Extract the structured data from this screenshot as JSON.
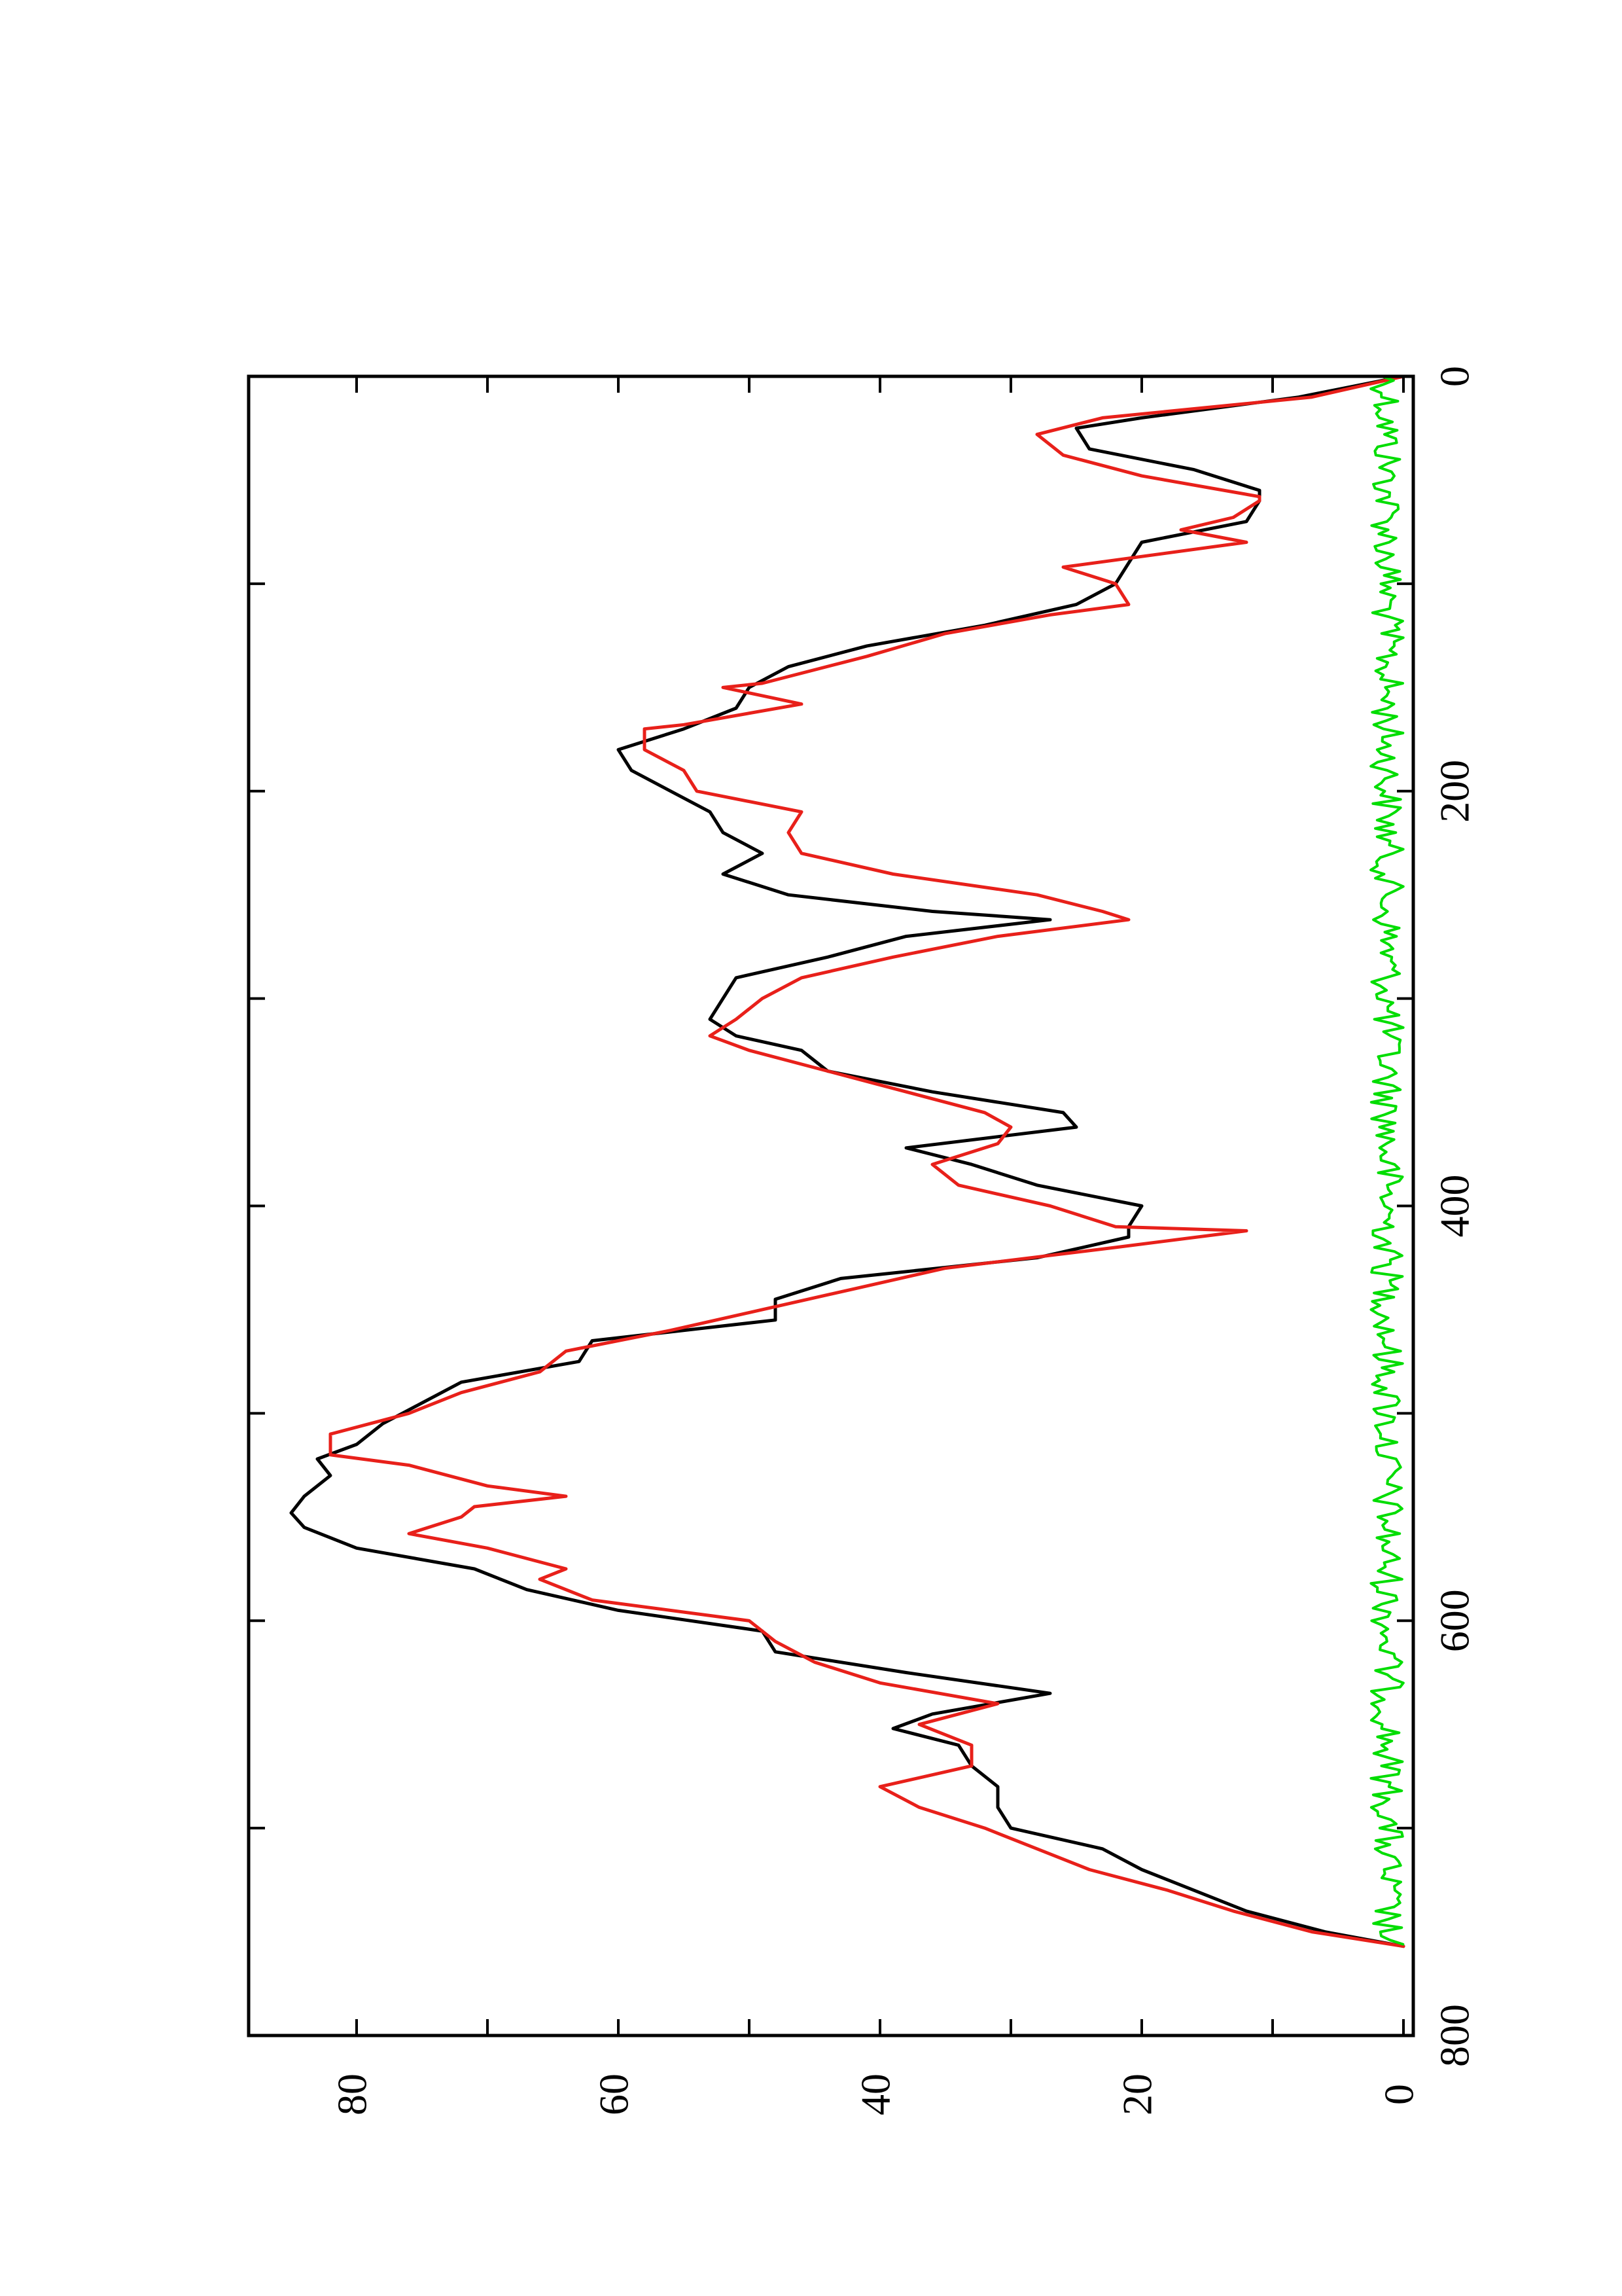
{
  "colors": {
    "background": "#ffffff",
    "axis": "#000000",
    "series": [
      "#000000",
      "#e8201a",
      "#00dd00"
    ]
  },
  "chart_data": {
    "type": "line",
    "orientation": "rotated-90-ccw",
    "title": "",
    "xlabel": "",
    "ylabel": "",
    "xlim": [
      0,
      800
    ],
    "ylim": [
      0,
      90
    ],
    "grid": false,
    "legend": "none",
    "x_ticks": [
      "0",
      "200",
      "400",
      "600",
      "800"
    ],
    "y_ticks": [
      "0",
      "20",
      "40",
      "60",
      "80"
    ],
    "series": [
      {
        "color": "#000000",
        "style": "line",
        "x": [
          0,
          10,
          20,
          25,
          35,
          45,
          55,
          60,
          70,
          80,
          90,
          100,
          110,
          120,
          130,
          140,
          150,
          160,
          170,
          180,
          190,
          200,
          210,
          220,
          230,
          240,
          250,
          258,
          262,
          270,
          280,
          290,
          300,
          310,
          318,
          325,
          335,
          345,
          355,
          362,
          372,
          380,
          390,
          400,
          410,
          415,
          425,
          435,
          445,
          455,
          465,
          475,
          485,
          495,
          505,
          515,
          522,
          530,
          540,
          548,
          555,
          565,
          575,
          585,
          595,
          605,
          615,
          625,
          635,
          645,
          652,
          660,
          670,
          680,
          690,
          700,
          710,
          720,
          730,
          740,
          750,
          757
        ],
        "y": [
          0,
          8,
          20,
          25,
          24,
          16,
          11,
          11,
          12,
          20,
          21,
          22,
          25,
          32,
          41,
          47,
          50,
          51,
          55,
          60,
          59,
          56,
          53,
          52,
          49,
          52,
          47,
          36,
          27,
          38,
          44,
          51,
          52,
          53,
          51,
          46,
          44,
          36,
          26,
          25,
          38,
          33,
          28,
          20,
          21,
          21,
          28,
          43,
          48,
          48,
          62,
          63,
          72,
          75,
          78,
          80,
          83,
          82,
          84,
          85,
          84,
          80,
          71,
          67,
          60,
          49,
          48,
          38,
          27,
          36,
          39,
          34,
          33,
          31,
          31,
          30,
          23,
          20,
          16,
          12,
          6,
          0
        ]
      },
      {
        "color": "#e8201a",
        "style": "step",
        "x": [
          0,
          10,
          20,
          28,
          38,
          48,
          58,
          60,
          68,
          74,
          80,
          92,
          100,
          110,
          115,
          124,
          135,
          148,
          150,
          158,
          168,
          170,
          180,
          190,
          200,
          210,
          220,
          230,
          240,
          250,
          258,
          262,
          270,
          280,
          290,
          300,
          310,
          318,
          325,
          335,
          345,
          355,
          362,
          370,
          380,
          390,
          400,
          410,
          412,
          420,
          430,
          440,
          450,
          460,
          470,
          480,
          490,
          500,
          510,
          520,
          525,
          535,
          540,
          545,
          550,
          558,
          565,
          575,
          580,
          590,
          600,
          610,
          620,
          630,
          640,
          650,
          660,
          670,
          680,
          690,
          700,
          710,
          720,
          730,
          740,
          750,
          757
        ],
        "y": [
          0,
          7,
          23,
          28,
          26,
          20,
          11,
          11,
          13,
          17,
          12,
          26,
          22,
          21,
          27,
          35,
          41,
          49,
          52,
          46,
          55,
          58,
          58,
          55,
          54,
          46,
          47,
          46,
          39,
          28,
          23,
          21,
          31,
          39,
          46,
          49,
          51,
          53,
          50,
          44,
          38,
          32,
          30,
          31,
          36,
          34,
          27,
          22,
          12,
          22,
          35,
          42,
          49,
          56,
          64,
          66,
          72,
          76,
          82,
          82,
          76,
          70,
          64,
          71,
          72,
          76,
          70,
          64,
          66,
          62,
          50,
          48,
          45,
          40,
          31,
          37,
          33,
          33,
          40,
          37,
          32,
          28,
          24,
          18,
          13,
          7,
          0
        ]
      },
      {
        "color": "#00dd00",
        "style": "noise",
        "x_range": [
          0,
          757
        ],
        "baseline": 0,
        "amplitude": 2.5
      }
    ]
  }
}
